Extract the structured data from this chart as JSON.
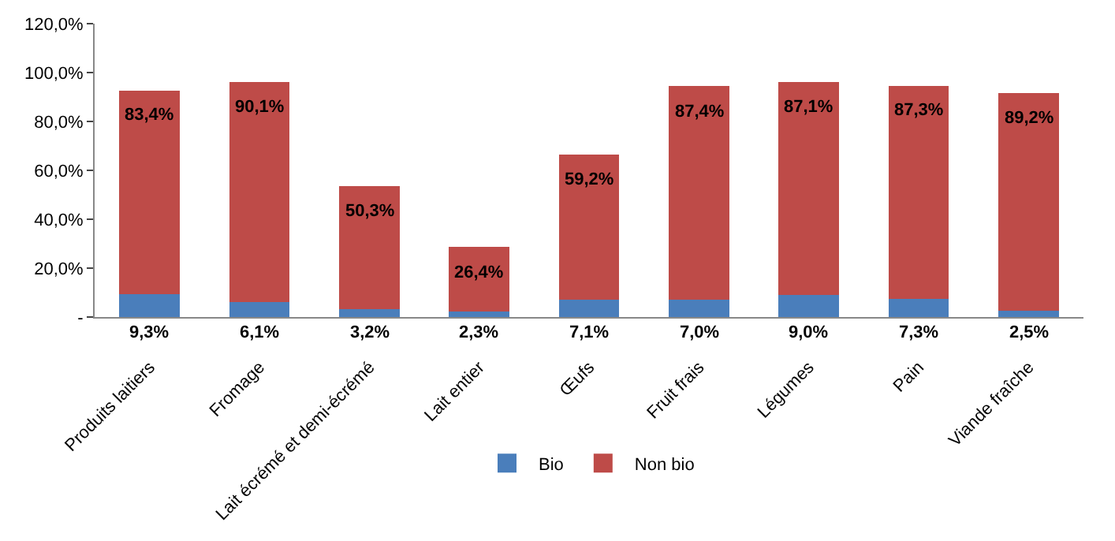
{
  "chart_data": {
    "type": "bar",
    "stacked": true,
    "categories": [
      "Produits laitiers",
      "Fromage",
      "Lait écrémé et demi-écrémé",
      "Lait entier",
      "Œufs",
      "Fruit frais",
      "Légumes",
      "Pain",
      "Viande fraîche"
    ],
    "series": [
      {
        "name": "Bio",
        "color": "#4a7ebb",
        "values": [
          9.3,
          6.1,
          3.2,
          2.3,
          7.1,
          7.0,
          9.0,
          7.3,
          2.5
        ],
        "value_labels": [
          "9,3%",
          "6,1%",
          "3,2%",
          "2,3%",
          "7,1%",
          "7,0%",
          "9,0%",
          "7,3%",
          "2,5%"
        ]
      },
      {
        "name": "Non bio",
        "color": "#be4b48",
        "values": [
          83.4,
          90.1,
          50.3,
          26.4,
          59.2,
          87.4,
          87.1,
          87.3,
          89.2
        ],
        "value_labels": [
          "83,4%",
          "90,1%",
          "50,3%",
          "26,4%",
          "59,2%",
          "87,4%",
          "87,1%",
          "87,3%",
          "89,2%"
        ]
      }
    ],
    "ylim": [
      0,
      120
    ],
    "yticks": [
      {
        "value": 0,
        "label": "-"
      },
      {
        "value": 20,
        "label": "20,0%"
      },
      {
        "value": 40,
        "label": "40,0%"
      },
      {
        "value": 60,
        "label": "60,0%"
      },
      {
        "value": 80,
        "label": "80,0%"
      },
      {
        "value": 100,
        "label": "100,0%"
      },
      {
        "value": 120,
        "label": "120,0%"
      }
    ],
    "legend": "bottom"
  }
}
